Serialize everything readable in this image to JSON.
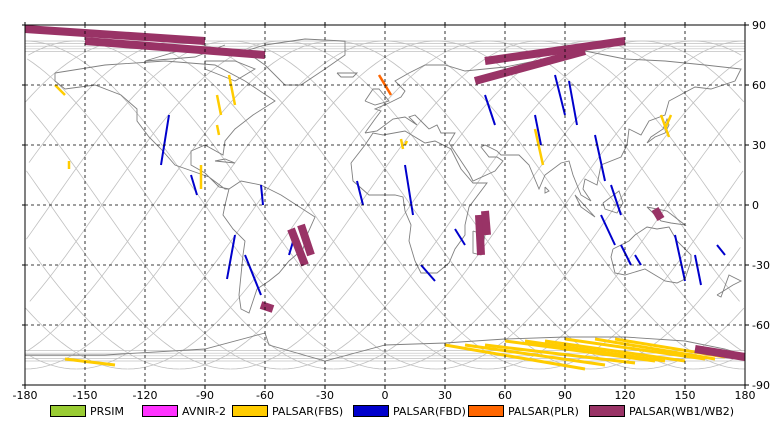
{
  "map": {
    "lon_ticks": [
      "-180",
      "-150",
      "-120",
      "-90",
      "-60",
      "-30",
      "0",
      "30",
      "60",
      "90",
      "120",
      "150",
      "180"
    ],
    "lat_ticks": [
      "90",
      "60",
      "30",
      "0",
      "-30",
      "-60",
      "-90"
    ],
    "lon_range": [
      -180,
      180
    ],
    "lat_range": [
      -90,
      90
    ],
    "grid": true,
    "colors": {
      "PRSIM": "#99cc33",
      "AVNIR-2": "#ff33ff",
      "PALSAR(FBS)": "#ffcc00",
      "PALSAR(FBD)": "#0000cc",
      "PALSAR(PLR)": "#ff6600",
      "PALSAR(WB1/WB2)": "#993366",
      "coastline": "#808080",
      "orbit": "#c0c0c0"
    }
  },
  "legend": [
    {
      "label": "PRSIM",
      "color": "#99cc33"
    },
    {
      "label": "AVNIR-2",
      "color": "#ff33ff"
    },
    {
      "label": "PALSAR(FBS)",
      "color": "#ffcc00"
    },
    {
      "label": "PALSAR(FBD)",
      "color": "#0000cc"
    },
    {
      "label": "PALSAR(PLR)",
      "color": "#ff6600"
    },
    {
      "label": "PALSAR(WB1/WB2)",
      "color": "#993366"
    }
  ],
  "swaths": {
    "FBD": [
      [
        [
          -108,
          45
        ],
        [
          -112,
          20
        ]
      ],
      [
        [
          -97,
          15
        ],
        [
          -94,
          5
        ]
      ],
      [
        [
          -62,
          10
        ],
        [
          -61,
          0
        ]
      ],
      [
        [
          -75,
          -15
        ],
        [
          -79,
          -37
        ]
      ],
      [
        [
          -70,
          -25
        ],
        [
          -62,
          -45
        ]
      ],
      [
        [
          -45,
          -15
        ],
        [
          -48,
          -25
        ]
      ],
      [
        [
          -14,
          12
        ],
        [
          -11,
          0
        ]
      ],
      [
        [
          10,
          20
        ],
        [
          14,
          -5
        ]
      ],
      [
        [
          35,
          -12
        ],
        [
          40,
          -20
        ]
      ],
      [
        [
          18,
          -30
        ],
        [
          25,
          -38
        ]
      ],
      [
        [
          50,
          55
        ],
        [
          55,
          40
        ]
      ],
      [
        [
          75,
          45
        ],
        [
          78,
          30
        ]
      ],
      [
        [
          85,
          65
        ],
        [
          90,
          45
        ]
      ],
      [
        [
          92,
          62
        ],
        [
          96,
          40
        ]
      ],
      [
        [
          105,
          35
        ],
        [
          110,
          12
        ]
      ],
      [
        [
          113,
          10
        ],
        [
          118,
          -5
        ]
      ],
      [
        [
          108,
          -5
        ],
        [
          115,
          -20
        ]
      ],
      [
        [
          118,
          -20
        ],
        [
          123,
          -30
        ]
      ],
      [
        [
          145,
          -15
        ],
        [
          150,
          -38
        ]
      ],
      [
        [
          155,
          -25
        ],
        [
          158,
          -40
        ]
      ],
      [
        [
          166,
          -20
        ],
        [
          170,
          -25
        ]
      ],
      [
        [
          125,
          -25
        ],
        [
          128,
          -30
        ]
      ]
    ],
    "FBS": [
      [
        [
          -165,
          60
        ],
        [
          -160,
          55
        ]
      ],
      [
        [
          -84,
          55
        ],
        [
          -82,
          45
        ]
      ],
      [
        [
          -78,
          65
        ],
        [
          -75,
          50
        ]
      ],
      [
        [
          -84,
          40
        ],
        [
          -83,
          35
        ]
      ],
      [
        [
          -92,
          20
        ],
        [
          -92,
          8
        ]
      ],
      [
        [
          -158,
          22
        ],
        [
          -158,
          18
        ]
      ],
      [
        [
          8,
          33
        ],
        [
          9,
          28
        ]
      ],
      [
        [
          10,
          30
        ],
        [
          11,
          32
        ]
      ],
      [
        [
          75,
          38
        ],
        [
          79,
          20
        ]
      ],
      [
        [
          138,
          45
        ],
        [
          142,
          34
        ]
      ],
      [
        [
          140,
          38
        ],
        [
          143,
          45
        ]
      ]
    ],
    "FBS_antarctic": [
      [
        [
          30,
          -70
        ],
        [
          100,
          -82
        ]
      ],
      [
        [
          40,
          -70
        ],
        [
          110,
          -80
        ]
      ],
      [
        [
          50,
          -70
        ],
        [
          125,
          -79
        ]
      ],
      [
        [
          60,
          -68
        ],
        [
          135,
          -78
        ]
      ],
      [
        [
          70,
          -68
        ],
        [
          140,
          -78
        ]
      ],
      [
        [
          80,
          -68
        ],
        [
          150,
          -78
        ]
      ],
      [
        [
          90,
          -67
        ],
        [
          160,
          -77
        ]
      ],
      [
        [
          105,
          -67
        ],
        [
          165,
          -77
        ]
      ],
      [
        [
          115,
          -67
        ],
        [
          170,
          -76
        ]
      ],
      [
        [
          -160,
          -77
        ],
        [
          -135,
          -80
        ]
      ]
    ],
    "PLR": [
      [
        [
          -3,
          65
        ],
        [
          3,
          55
        ]
      ]
    ],
    "WB": [
      [
        [
          -180,
          88
        ],
        [
          -90,
          82
        ]
      ],
      [
        [
          -150,
          82
        ],
        [
          -60,
          75
        ]
      ],
      [
        [
          50,
          72
        ],
        [
          120,
          82
        ]
      ],
      [
        [
          45,
          62
        ],
        [
          100,
          77
        ]
      ],
      [
        [
          -47,
          -12
        ],
        [
          -40,
          -30
        ]
      ],
      [
        [
          -42,
          -10
        ],
        [
          -37,
          -25
        ]
      ],
      [
        [
          47,
          -5
        ],
        [
          48,
          -25
        ]
      ],
      [
        [
          50,
          -3
        ],
        [
          51,
          -15
        ]
      ],
      [
        [
          -62,
          -50
        ],
        [
          -56,
          -52
        ]
      ],
      [
        [
          135,
          -2
        ],
        [
          138,
          -7
        ]
      ],
      [
        [
          155,
          -72
        ],
        [
          180,
          -76
        ]
      ]
    ]
  }
}
